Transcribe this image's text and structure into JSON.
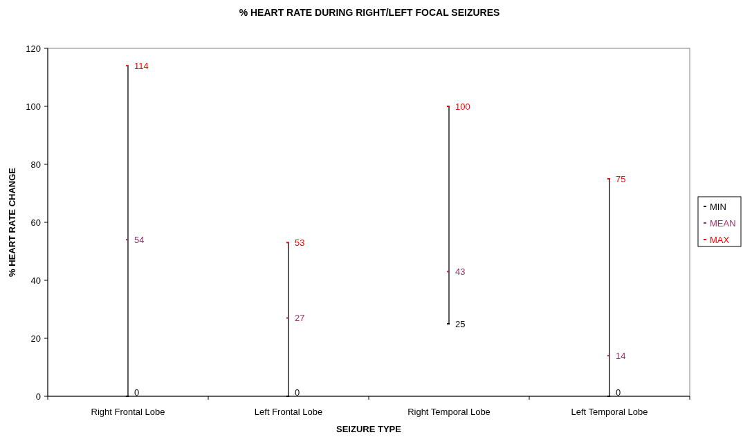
{
  "chart_data": {
    "type": "scatter",
    "title": "% HEART RATE DURING RIGHT/LEFT FOCAL SEIZURES",
    "xlabel": "SEIZURE TYPE",
    "ylabel": "% HEART RATE CHANGE",
    "categories": [
      "Right Frontal Lobe",
      "Left Frontal Lobe",
      "Right Temporal Lobe",
      "Left Temporal Lobe"
    ],
    "series": [
      {
        "name": "MIN",
        "color": "#000000",
        "values": [
          0,
          0,
          25,
          0
        ]
      },
      {
        "name": "MEAN",
        "color": "#993366",
        "values": [
          54,
          27,
          43,
          14
        ]
      },
      {
        "name": "MAX",
        "color": "#ff0000",
        "values": [
          114,
          53,
          100,
          75
        ]
      }
    ],
    "ylim": [
      0,
      120
    ],
    "yticks": [
      0,
      20,
      40,
      60,
      80,
      100,
      120
    ],
    "data_labels": true,
    "legend": "right"
  }
}
